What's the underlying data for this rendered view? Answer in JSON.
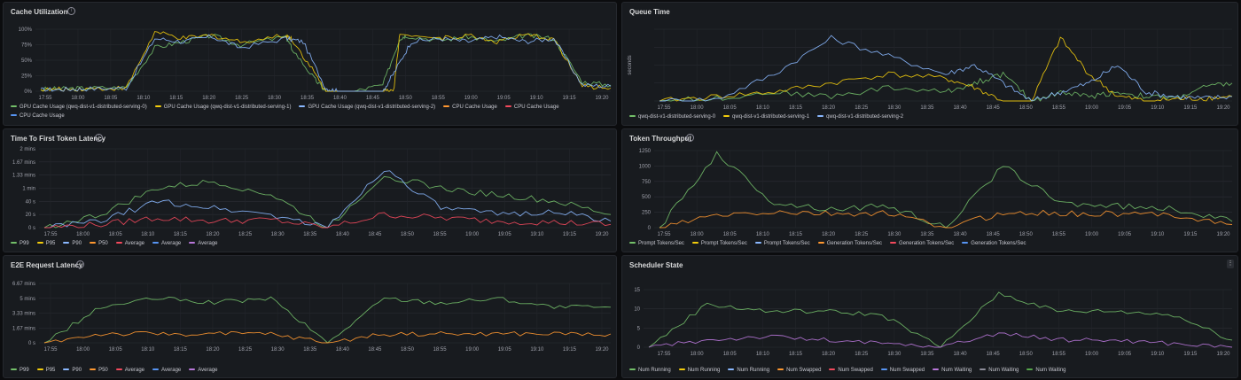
{
  "panels": [
    {
      "id": "cache",
      "title": "Cache Utilization",
      "ylabel": "",
      "yticks": [
        "100%",
        "75%",
        "50%",
        "25%",
        "0%"
      ],
      "xticks": [
        "17:55",
        "18:00",
        "18:05",
        "18:10",
        "18:15",
        "18:20",
        "18:25",
        "18:30",
        "18:35",
        "18:40",
        "18:45",
        "18:50",
        "18:55",
        "19:00",
        "19:05",
        "19:10",
        "19:15",
        "19:20"
      ],
      "legend": [
        {
          "label": "GPU Cache Usage (qwq-dist-v1-distributed-serving-0)",
          "color": "#73bf69"
        },
        {
          "label": "GPU Cache Usage (qwq-dist-v1-distributed-serving-1)",
          "color": "#f2cc0c"
        },
        {
          "label": "GPU Cache Usage (qwq-dist-v1-distributed-serving-2)",
          "color": "#8ab8ff"
        },
        {
          "label": "CPU Cache Usage",
          "color": "#ff9830"
        },
        {
          "label": "CPU Cache Usage",
          "color": "#f2495c"
        },
        {
          "label": "CPU Cache Usage",
          "color": "#5794f2"
        }
      ]
    },
    {
      "id": "queue",
      "title": "Queue Time",
      "ylabel": "seconds",
      "yticks": [],
      "xticks": [
        "17:55",
        "18:00",
        "18:05",
        "18:10",
        "18:15",
        "18:20",
        "18:25",
        "18:30",
        "18:35",
        "18:40",
        "18:45",
        "18:50",
        "18:55",
        "19:00",
        "19:05",
        "19:10",
        "19:15",
        "19:20"
      ],
      "legend": [
        {
          "label": "qwq-dist-v1-distributed-serving-0",
          "color": "#73bf69"
        },
        {
          "label": "qwq-dist-v1-distributed-serving-1",
          "color": "#f2cc0c"
        },
        {
          "label": "qwq-dist-v1-distributed-serving-2",
          "color": "#8ab8ff"
        }
      ]
    },
    {
      "id": "ttft",
      "title": "Time To First Token Latency",
      "ylabel": "",
      "yticks": [
        "2 mins",
        "1.67 mins",
        "1.33 mins",
        "1 min",
        "40 s",
        "20 s",
        "0 s"
      ],
      "xticks": [
        "17:55",
        "18:00",
        "18:05",
        "18:10",
        "18:15",
        "18:20",
        "18:25",
        "18:30",
        "18:35",
        "18:40",
        "18:45",
        "18:50",
        "18:55",
        "19:00",
        "19:05",
        "19:10",
        "19:15",
        "19:20"
      ],
      "legend": [
        {
          "label": "P99",
          "color": "#73bf69"
        },
        {
          "label": "P95",
          "color": "#f2cc0c"
        },
        {
          "label": "P90",
          "color": "#8ab8ff"
        },
        {
          "label": "P50",
          "color": "#ff9830"
        },
        {
          "label": "Average",
          "color": "#f2495c"
        },
        {
          "label": "Average",
          "color": "#5794f2"
        },
        {
          "label": "Average",
          "color": "#b877d9"
        }
      ]
    },
    {
      "id": "throughput",
      "title": "Token Throughput",
      "ylabel": "",
      "yticks": [
        "1250",
        "1000",
        "750",
        "500",
        "250",
        "0"
      ],
      "xticks": [
        "17:55",
        "18:00",
        "18:05",
        "18:10",
        "18:15",
        "18:20",
        "18:25",
        "18:30",
        "18:35",
        "18:40",
        "18:45",
        "18:50",
        "18:55",
        "19:00",
        "19:05",
        "19:10",
        "19:15",
        "19:20"
      ],
      "legend": [
        {
          "label": "Prompt Tokens/Sec",
          "color": "#73bf69"
        },
        {
          "label": "Prompt Tokens/Sec",
          "color": "#f2cc0c"
        },
        {
          "label": "Prompt Tokens/Sec",
          "color": "#8ab8ff"
        },
        {
          "label": "Generation Tokens/Sec",
          "color": "#ff9830"
        },
        {
          "label": "Generation Tokens/Sec",
          "color": "#f2495c"
        },
        {
          "label": "Generation Tokens/Sec",
          "color": "#5794f2"
        }
      ]
    },
    {
      "id": "e2e",
      "title": "E2E Request Latency",
      "ylabel": "",
      "yticks": [
        "6.67 mins",
        "5 mins",
        "3.33 mins",
        "1.67 mins",
        "0 s"
      ],
      "xticks": [
        "17:55",
        "18:00",
        "18:05",
        "18:10",
        "18:15",
        "18:20",
        "18:25",
        "18:30",
        "18:35",
        "18:40",
        "18:45",
        "18:50",
        "18:55",
        "19:00",
        "19:05",
        "19:10",
        "19:15",
        "19:20"
      ],
      "legend": [
        {
          "label": "P99",
          "color": "#73bf69"
        },
        {
          "label": "P95",
          "color": "#f2cc0c"
        },
        {
          "label": "P90",
          "color": "#8ab8ff"
        },
        {
          "label": "P50",
          "color": "#ff9830"
        },
        {
          "label": "Average",
          "color": "#f2495c"
        },
        {
          "label": "Average",
          "color": "#5794f2"
        },
        {
          "label": "Average",
          "color": "#b877d9"
        }
      ]
    },
    {
      "id": "scheduler",
      "title": "Scheduler State",
      "ylabel": "",
      "yticks": [
        "15",
        "10",
        "5",
        "0"
      ],
      "xticks": [
        "17:55",
        "18:00",
        "18:05",
        "18:10",
        "18:15",
        "18:20",
        "18:25",
        "18:30",
        "18:35",
        "18:40",
        "18:45",
        "18:50",
        "18:55",
        "19:00",
        "19:05",
        "19:10",
        "19:15",
        "19:20"
      ],
      "legend": [
        {
          "label": "Num Running",
          "color": "#73bf69"
        },
        {
          "label": "Num Running",
          "color": "#f2cc0c"
        },
        {
          "label": "Num Running",
          "color": "#8ab8ff"
        },
        {
          "label": "Num Swapped",
          "color": "#ff9830"
        },
        {
          "label": "Num Swapped",
          "color": "#f2495c"
        },
        {
          "label": "Num Swapped",
          "color": "#5794f2"
        },
        {
          "label": "Num Waiting",
          "color": "#b877d9"
        },
        {
          "label": "Num Waiting",
          "color": "#8e8e9a"
        },
        {
          "label": "Num Waiting",
          "color": "#56a64b"
        }
      ]
    }
  ],
  "chart_data": [
    {
      "type": "line",
      "title": "Cache Utilization",
      "ylim": [
        0,
        100
      ],
      "series": [
        {
          "name": "GPU Cache Usage (qwq-dist-v1-distributed-serving-0)",
          "x": [
            0,
            4,
            8,
            15,
            20,
            25,
            30,
            35,
            43,
            44,
            48,
            50,
            55,
            60,
            63,
            64,
            70,
            75,
            80,
            85,
            90,
            95,
            100
          ],
          "values": [
            3,
            4,
            5,
            6,
            70,
            80,
            90,
            75,
            88,
            70,
            20,
            0,
            0,
            10,
            85,
            90,
            82,
            88,
            80,
            90,
            85,
            15,
            10
          ]
        },
        {
          "name": "GPU Cache Usage (qwq-dist-v1-distributed-serving-1)",
          "x": [
            0,
            4,
            8,
            15,
            20,
            25,
            30,
            35,
            43,
            44,
            48,
            50,
            55,
            60,
            62,
            63,
            70,
            75,
            80,
            85,
            90,
            95,
            100
          ],
          "values": [
            2,
            3,
            4,
            5,
            95,
            85,
            90,
            80,
            90,
            85,
            30,
            0,
            0,
            0,
            5,
            95,
            85,
            90,
            80,
            90,
            85,
            8,
            5
          ]
        },
        {
          "name": "GPU Cache Usage (qwq-dist-v1-distributed-serving-2)",
          "x": [
            0,
            4,
            8,
            15,
            20,
            25,
            30,
            35,
            43,
            46,
            50,
            52,
            55,
            60,
            62,
            65,
            70,
            75,
            80,
            85,
            90,
            95,
            100
          ],
          "values": [
            2,
            3,
            4,
            5,
            85,
            80,
            88,
            70,
            85,
            80,
            5,
            0,
            0,
            0,
            30,
            80,
            85,
            80,
            88,
            80,
            85,
            10,
            8
          ]
        }
      ]
    },
    {
      "type": "line",
      "title": "Queue Time",
      "ylim": [
        0,
        8
      ],
      "series": [
        {
          "name": "qwq-dist-v1-distributed-serving-0",
          "x": [
            0,
            10,
            20,
            30,
            40,
            50,
            55,
            60,
            65,
            70,
            75,
            80,
            85,
            90,
            95,
            100
          ],
          "values": [
            0,
            0.3,
            1,
            0.5,
            1.5,
            1,
            2,
            3,
            0,
            1,
            0.5,
            1,
            0.5,
            0.3,
            1.5,
            2
          ]
        },
        {
          "name": "qwq-dist-v1-distributed-serving-1",
          "x": [
            0,
            10,
            20,
            30,
            40,
            50,
            55,
            60,
            65,
            70,
            75,
            80,
            85,
            90,
            95,
            100
          ],
          "values": [
            0,
            0.5,
            1,
            2,
            3,
            2.5,
            1.5,
            0,
            0,
            7,
            3,
            0.5,
            0,
            0.2,
            0.3,
            0.5
          ]
        },
        {
          "name": "qwq-dist-v1-distributed-serving-2",
          "x": [
            0,
            10,
            20,
            30,
            40,
            50,
            55,
            60,
            65,
            70,
            75,
            80,
            85,
            90,
            95,
            100
          ],
          "values": [
            0,
            0.2,
            3,
            7,
            5,
            3,
            4,
            2,
            0,
            1,
            2,
            4,
            1,
            0.5,
            0.3,
            0.5
          ]
        }
      ]
    },
    {
      "type": "line",
      "title": "Time To First Token Latency",
      "ylim": [
        0,
        120
      ],
      "series": [
        {
          "name": "P99",
          "x": [
            0,
            10,
            20,
            30,
            40,
            50,
            60,
            70,
            80,
            90,
            100
          ],
          "values": [
            0,
            20,
            60,
            70,
            50,
            0,
            80,
            60,
            50,
            40,
            20
          ]
        },
        {
          "name": "P90",
          "x": [
            0,
            10,
            20,
            30,
            40,
            50,
            60,
            70,
            80,
            90,
            100
          ],
          "values": [
            0,
            10,
            40,
            30,
            20,
            0,
            90,
            30,
            20,
            25,
            10
          ]
        },
        {
          "name": "Average",
          "x": [
            0,
            10,
            20,
            30,
            40,
            50,
            60,
            70,
            80,
            90,
            100
          ],
          "values": [
            0,
            5,
            15,
            10,
            12,
            0,
            20,
            15,
            10,
            8,
            5
          ]
        }
      ]
    },
    {
      "type": "line",
      "title": "Token Throughput",
      "ylim": [
        0,
        1250
      ],
      "series": [
        {
          "name": "Prompt Tokens/Sec",
          "x": [
            0,
            10,
            20,
            30,
            40,
            50,
            60,
            70,
            80,
            90,
            100
          ],
          "values": [
            0,
            1200,
            400,
            300,
            350,
            0,
            1000,
            400,
            350,
            300,
            100
          ]
        },
        {
          "name": "Generation Tokens/Sec",
          "x": [
            0,
            10,
            20,
            30,
            40,
            50,
            60,
            70,
            80,
            90,
            100
          ],
          "values": [
            0,
            200,
            250,
            220,
            230,
            0,
            240,
            230,
            220,
            210,
            50
          ]
        }
      ]
    },
    {
      "type": "line",
      "title": "E2E Request Latency",
      "ylim": [
        0,
        6.67
      ],
      "series": [
        {
          "name": "P99",
          "x": [
            0,
            10,
            20,
            30,
            40,
            50,
            60,
            70,
            80,
            90,
            100
          ],
          "values": [
            0,
            4,
            5,
            4.5,
            5,
            0,
            5,
            4.5,
            5,
            4,
            4
          ]
        },
        {
          "name": "P50",
          "x": [
            0,
            10,
            20,
            30,
            40,
            50,
            60,
            70,
            80,
            90,
            100
          ],
          "values": [
            0,
            1,
            1,
            1,
            1,
            0,
            1,
            1,
            1,
            1,
            1
          ]
        }
      ]
    },
    {
      "type": "line",
      "title": "Scheduler State",
      "ylim": [
        0,
        16
      ],
      "series": [
        {
          "name": "Num Running",
          "x": [
            0,
            10,
            20,
            30,
            40,
            50,
            60,
            70,
            80,
            90,
            100
          ],
          "values": [
            0,
            12,
            10,
            10,
            9,
            0,
            15,
            10,
            10,
            9,
            2
          ]
        },
        {
          "name": "Num Waiting",
          "x": [
            0,
            10,
            20,
            30,
            40,
            50,
            60,
            70,
            80,
            90,
            100
          ],
          "values": [
            0,
            2,
            3,
            2,
            1,
            0,
            4,
            2,
            2,
            1,
            0
          ]
        }
      ]
    }
  ]
}
